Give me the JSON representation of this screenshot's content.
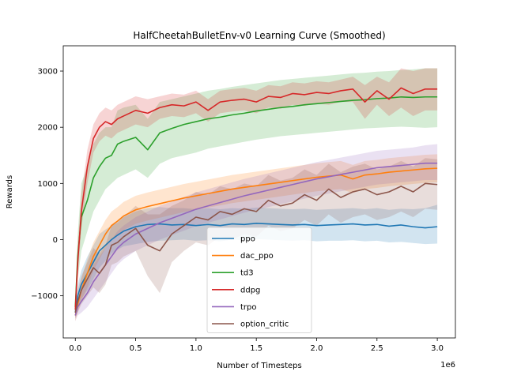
{
  "chart_data": {
    "type": "line",
    "title": "HalfCheetahBulletEnv-v0 Learning Curve (Smoothed)",
    "xlabel": "Number of Timesteps",
    "ylabel": "Rewards",
    "x_scale_label": "1e6",
    "xlim": [
      -0.1,
      3.15
    ],
    "ylim": [
      -1750,
      3450
    ],
    "x_ticks": [
      0.0,
      0.5,
      1.0,
      1.5,
      2.0,
      2.5,
      3.0
    ],
    "x_tick_labels": [
      "0.0",
      "0.5",
      "1.0",
      "1.5",
      "2.0",
      "2.5",
      "3.0"
    ],
    "y_ticks": [
      -1000,
      0,
      1000,
      2000,
      3000
    ],
    "y_tick_labels": [
      "−1000",
      "0",
      "1000",
      "2000",
      "3000"
    ],
    "grid": false,
    "legend_position": "lower-center",
    "x": [
      0.0,
      0.02,
      0.05,
      0.1,
      0.15,
      0.2,
      0.25,
      0.3,
      0.35,
      0.4,
      0.5,
      0.6,
      0.7,
      0.8,
      0.9,
      1.0,
      1.1,
      1.2,
      1.3,
      1.4,
      1.5,
      1.6,
      1.7,
      1.8,
      1.9,
      2.0,
      2.1,
      2.2,
      2.3,
      2.4,
      2.5,
      2.6,
      2.7,
      2.8,
      2.9,
      3.0
    ],
    "series": [
      {
        "name": "ppo",
        "color": "#1f77b4",
        "values": [
          -1300,
          -1000,
          -800,
          -600,
          -400,
          -200,
          -100,
          0,
          80,
          150,
          230,
          270,
          280,
          260,
          270,
          250,
          270,
          250,
          280,
          270,
          290,
          280,
          270,
          260,
          270,
          250,
          260,
          270,
          280,
          260,
          270,
          240,
          260,
          230,
          210,
          230
        ],
        "lower": [
          -1400,
          -1200,
          -1050,
          -900,
          -700,
          -500,
          -380,
          -250,
          -180,
          -120,
          -80,
          -40,
          -20,
          -10,
          0,
          -20,
          -10,
          -30,
          0,
          -10,
          10,
          0,
          -10,
          -20,
          -10,
          -30,
          -20,
          -20,
          -10,
          -30,
          -20,
          -50,
          -40,
          -60,
          -80,
          -70
        ],
        "upper": [
          -1200,
          -800,
          -550,
          -300,
          -100,
          100,
          180,
          250,
          330,
          400,
          500,
          560,
          580,
          560,
          560,
          540,
          560,
          540,
          560,
          550,
          570,
          560,
          550,
          540,
          550,
          530,
          540,
          550,
          560,
          540,
          560,
          530,
          550,
          540,
          560,
          620
        ]
      },
      {
        "name": "dac_ppo",
        "color": "#ff7f0e",
        "values": [
          -1350,
          -1150,
          -900,
          -600,
          -300,
          -100,
          100,
          250,
          330,
          420,
          530,
          590,
          640,
          690,
          740,
          780,
          820,
          860,
          900,
          930,
          960,
          990,
          1020,
          1050,
          1080,
          1110,
          1130,
          1150,
          1080,
          1150,
          1170,
          1200,
          1220,
          1240,
          1260,
          1270
        ],
        "lower": [
          -1450,
          -1300,
          -1100,
          -850,
          -550,
          -350,
          -150,
          0,
          80,
          170,
          280,
          340,
          390,
          440,
          490,
          530,
          570,
          610,
          650,
          680,
          710,
          740,
          770,
          800,
          830,
          860,
          880,
          900,
          830,
          900,
          920,
          950,
          970,
          990,
          1010,
          1020
        ],
        "upper": [
          -1250,
          -1000,
          -700,
          -350,
          -50,
          150,
          350,
          500,
          580,
          670,
          780,
          840,
          890,
          940,
          990,
          1030,
          1070,
          1110,
          1150,
          1180,
          1210,
          1240,
          1270,
          1300,
          1330,
          1360,
          1380,
          1400,
          1330,
          1400,
          1420,
          1450,
          1470,
          1490,
          1510,
          1520
        ]
      },
      {
        "name": "td3",
        "color": "#2ca02c",
        "values": [
          -1200,
          -300,
          400,
          700,
          1100,
          1300,
          1450,
          1500,
          1700,
          1750,
          1820,
          1600,
          1900,
          1980,
          2050,
          2100,
          2150,
          2180,
          2220,
          2250,
          2290,
          2320,
          2350,
          2370,
          2400,
          2420,
          2440,
          2460,
          2480,
          2490,
          2510,
          2520,
          2540,
          2530,
          2540,
          2540
        ],
        "lower": [
          -1350,
          -700,
          -200,
          150,
          500,
          700,
          900,
          1000,
          1100,
          1150,
          1250,
          1100,
          1350,
          1450,
          1500,
          1550,
          1620,
          1660,
          1700,
          1740,
          1780,
          1810,
          1840,
          1860,
          1880,
          1900,
          1920,
          1940,
          1960,
          1980,
          1990,
          2000,
          2010,
          2000,
          1990,
          2000
        ],
        "upper": [
          -1050,
          100,
          1000,
          1300,
          1700,
          1900,
          2000,
          2000,
          2300,
          2350,
          2400,
          2150,
          2450,
          2500,
          2550,
          2600,
          2650,
          2680,
          2720,
          2750,
          2780,
          2810,
          2840,
          2860,
          2880,
          2900,
          2920,
          2940,
          2960,
          2970,
          2990,
          3000,
          3020,
          3030,
          3050,
          3050
        ]
      },
      {
        "name": "ddpg",
        "color": "#d62728",
        "values": [
          -1250,
          -400,
          500,
          1300,
          1800,
          2000,
          2100,
          2050,
          2150,
          2200,
          2300,
          2250,
          2350,
          2400,
          2380,
          2450,
          2300,
          2450,
          2480,
          2500,
          2450,
          2550,
          2530,
          2600,
          2580,
          2620,
          2600,
          2650,
          2680,
          2450,
          2650,
          2500,
          2700,
          2600,
          2680,
          2680
        ],
        "lower": [
          -1350,
          -700,
          200,
          1000,
          1550,
          1750,
          1850,
          1800,
          1900,
          1950,
          2050,
          2000,
          2150,
          2200,
          2180,
          2250,
          2100,
          2250,
          2280,
          2300,
          2250,
          2350,
          2330,
          2400,
          2380,
          2420,
          2400,
          2450,
          2450,
          2150,
          2400,
          2200,
          2350,
          2200,
          2300,
          2300
        ],
        "upper": [
          -1150,
          -100,
          800,
          1600,
          2050,
          2250,
          2350,
          2300,
          2400,
          2450,
          2550,
          2500,
          2550,
          2600,
          2580,
          2650,
          2500,
          2650,
          2680,
          2700,
          2650,
          2750,
          2730,
          2800,
          2780,
          2820,
          2800,
          2850,
          2900,
          2750,
          2900,
          2800,
          3050,
          3000,
          3050,
          3050
        ]
      },
      {
        "name": "trpo",
        "color": "#9467bd",
        "values": [
          -1350,
          -1200,
          -1100,
          -950,
          -750,
          -600,
          -450,
          -300,
          -150,
          -50,
          100,
          200,
          300,
          380,
          460,
          540,
          600,
          660,
          720,
          780,
          830,
          880,
          930,
          980,
          1030,
          1080,
          1120,
          1160,
          1200,
          1240,
          1280,
          1300,
          1320,
          1340,
          1360,
          1360
        ],
        "lower": [
          -1450,
          -1350,
          -1300,
          -1200,
          -1050,
          -900,
          -750,
          -600,
          -450,
          -350,
          -200,
          -100,
          0,
          80,
          160,
          240,
          300,
          360,
          420,
          480,
          530,
          580,
          630,
          680,
          730,
          780,
          820,
          860,
          900,
          940,
          980,
          1000,
          1020,
          1040,
          1060,
          1060
        ],
        "upper": [
          -1250,
          -1050,
          -900,
          -700,
          -450,
          -300,
          -150,
          0,
          150,
          250,
          400,
          500,
          600,
          680,
          760,
          840,
          900,
          960,
          1020,
          1080,
          1130,
          1180,
          1230,
          1280,
          1330,
          1380,
          1420,
          1460,
          1500,
          1540,
          1580,
          1600,
          1620,
          1640,
          1680,
          1700
        ]
      },
      {
        "name": "option_critic",
        "color": "#8c564b",
        "values": [
          -1300,
          -1100,
          -900,
          -700,
          -500,
          -600,
          -450,
          -100,
          -50,
          50,
          200,
          -100,
          -200,
          100,
          250,
          400,
          350,
          500,
          450,
          550,
          500,
          700,
          600,
          650,
          800,
          700,
          900,
          750,
          850,
          900,
          800,
          850,
          950,
          850,
          1000,
          980
        ],
        "lower": [
          -1400,
          -1300,
          -1150,
          -1000,
          -850,
          -950,
          -800,
          -450,
          -400,
          -300,
          -200,
          -650,
          -950,
          -400,
          -200,
          -50,
          -100,
          50,
          0,
          100,
          50,
          250,
          150,
          200,
          350,
          250,
          450,
          300,
          400,
          450,
          350,
          400,
          500,
          400,
          550,
          530
        ],
        "upper": [
          -1200,
          -900,
          -650,
          -400,
          -150,
          -250,
          -100,
          250,
          300,
          400,
          600,
          450,
          450,
          600,
          700,
          850,
          800,
          950,
          900,
          1000,
          950,
          1150,
          1050,
          1100,
          1250,
          1150,
          1350,
          1200,
          1300,
          1350,
          1250,
          1300,
          1400,
          1300,
          1450,
          1430
        ]
      }
    ]
  }
}
